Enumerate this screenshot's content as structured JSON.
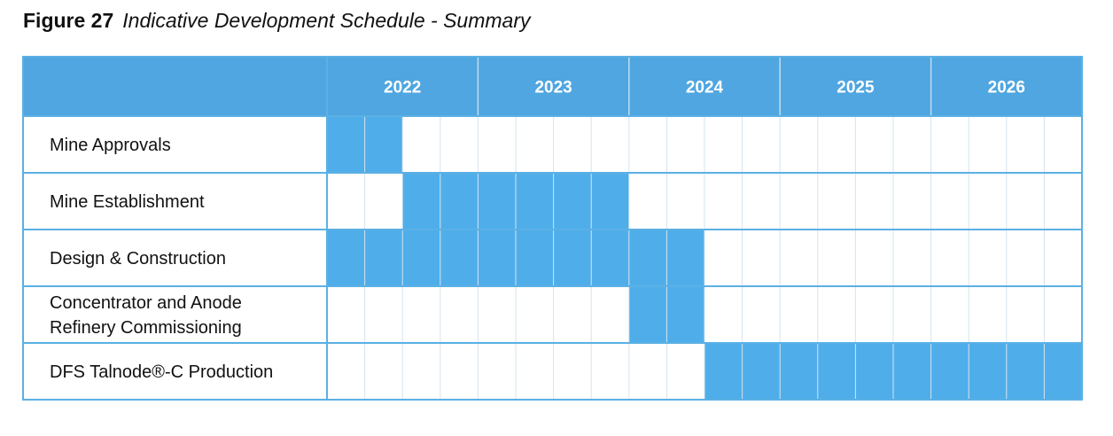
{
  "figure": {
    "number": "Figure 27",
    "caption": "Indicative Development Schedule - Summary"
  },
  "colors": {
    "header_fill": "#4FA6E0",
    "bar_fill": "#4FAEEA",
    "border": "#5BB0E4",
    "grid_line": "#D6E4EE",
    "header_divider": "#BFDDF2"
  },
  "chart_data": {
    "type": "gantt",
    "years": [
      "2022",
      "2023",
      "2024",
      "2025",
      "2026"
    ],
    "periods_per_year": 4,
    "tasks": [
      {
        "label_lines": [
          "Mine Approvals"
        ],
        "start_period": 0,
        "end_period": 1
      },
      {
        "label_lines": [
          "Mine Establishment"
        ],
        "start_period": 2,
        "end_period": 7
      },
      {
        "label_lines": [
          "Design & Construction"
        ],
        "start_period": 0,
        "end_period": 9
      },
      {
        "label_lines": [
          "Concentrator and Anode",
          "Refinery Commissioning"
        ],
        "start_period": 8,
        "end_period": 9
      },
      {
        "label_lines": [
          "DFS Talnode®-C Production"
        ],
        "start_period": 10,
        "end_period": 19
      }
    ]
  }
}
